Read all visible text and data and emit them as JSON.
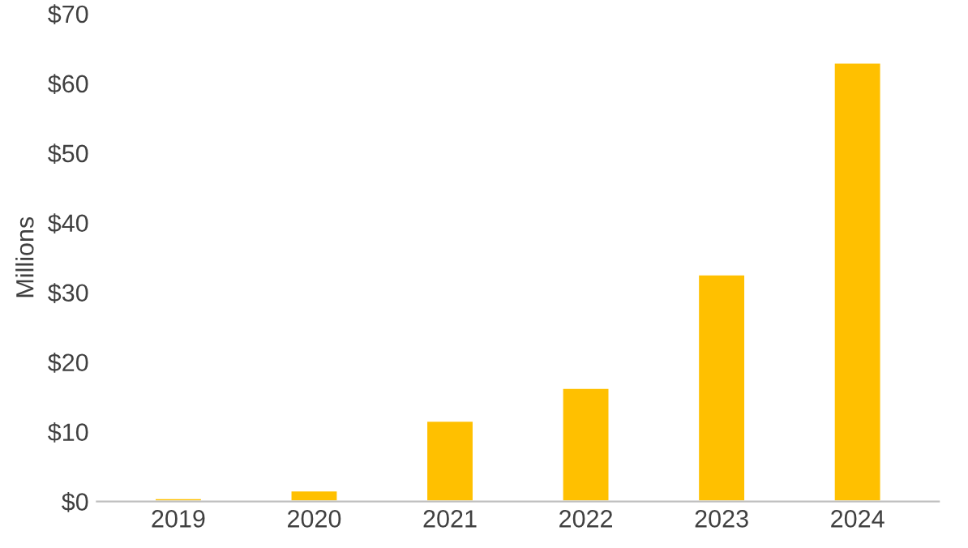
{
  "chart_data": {
    "type": "bar",
    "ylabel": "Millions",
    "categories": [
      "2019",
      "2020",
      "2021",
      "2022",
      "2023",
      "2024"
    ],
    "values": [
      0.5,
      1.6,
      11.6,
      16.3,
      32.6,
      63
    ],
    "color": "#ffc000",
    "ylim": [
      0,
      70
    ],
    "yticks": [
      {
        "value": 0,
        "label": "$0"
      },
      {
        "value": 10,
        "label": "$10"
      },
      {
        "value": 20,
        "label": "$20"
      },
      {
        "value": 30,
        "label": "$30"
      },
      {
        "value": 40,
        "label": "$40"
      },
      {
        "value": 50,
        "label": "$50"
      },
      {
        "value": 60,
        "label": "$60"
      },
      {
        "value": 70,
        "label": "$70"
      }
    ],
    "grid": false,
    "legend": false
  }
}
